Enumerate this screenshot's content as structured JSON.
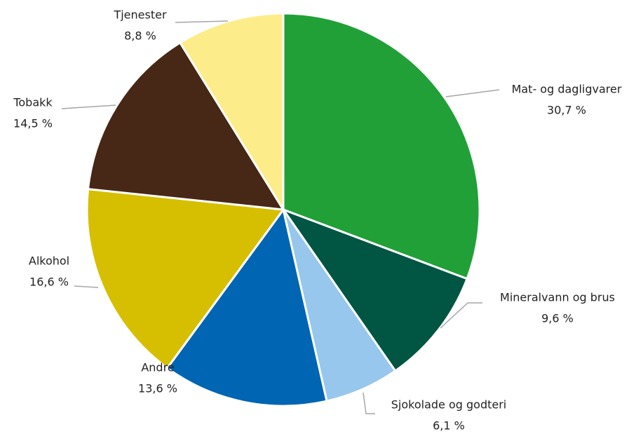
{
  "chart_data": {
    "type": "pie",
    "categories": [
      "Mat- og dagligvarer",
      "Mineralvann og brus",
      "Sjokolade og godteri",
      "Andre",
      "Alkohol",
      "Tobakk",
      "Tjenester"
    ],
    "values": [
      30.7,
      9.6,
      6.1,
      13.6,
      16.6,
      14.5,
      8.8
    ],
    "value_labels": [
      "30,7 %",
      "9,6 %",
      "6,1 %",
      "13,6 %",
      "16,6 %",
      "14,5 %",
      "8,8 %"
    ],
    "colors": [
      "#21a038",
      "#005543",
      "#97c7ec",
      "#0065b3",
      "#d6bf00",
      "#472715",
      "#fdec8a"
    ]
  }
}
